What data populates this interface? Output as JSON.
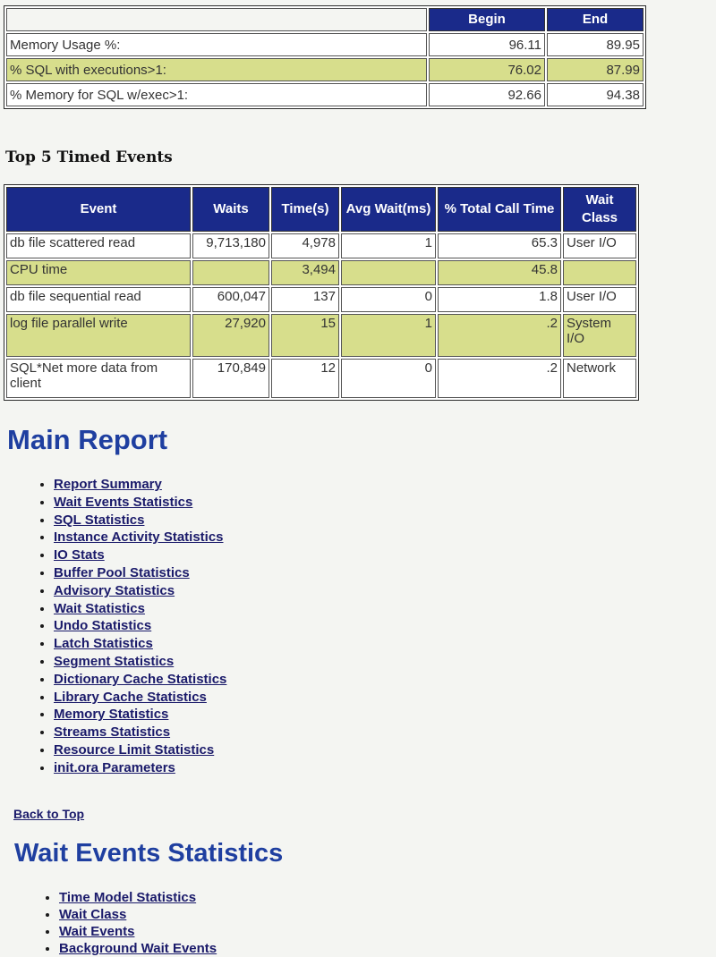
{
  "memory_table": {
    "headers": [
      "",
      "Begin",
      "End"
    ],
    "rows": [
      {
        "label": "Memory Usage %:",
        "begin": "96.11",
        "end": "89.95",
        "highlight": false
      },
      {
        "label": "% SQL with executions>1:",
        "begin": "76.02",
        "end": "87.99",
        "highlight": true
      },
      {
        "label": "% Memory for SQL w/exec>1:",
        "begin": "92.66",
        "end": "94.38",
        "highlight": false
      }
    ]
  },
  "top5": {
    "title": "Top 5 Timed Events",
    "headers": [
      "Event",
      "Waits",
      "Time(s)",
      "Avg Wait(ms)",
      "% Total Call Time",
      "Wait Class"
    ],
    "rows": [
      {
        "event": "db file scattered read",
        "waits": "9,713,180",
        "time": "4,978",
        "avg": "1",
        "pct": "65.3",
        "wclass": "User I/O"
      },
      {
        "event": "CPU time",
        "waits": "",
        "time": "3,494",
        "avg": "",
        "pct": "45.8",
        "wclass": ""
      },
      {
        "event": "db file sequential read",
        "waits": "600,047",
        "time": "137",
        "avg": "0",
        "pct": "1.8",
        "wclass": "User I/O"
      },
      {
        "event": "log file parallel write",
        "waits": "27,920",
        "time": "15",
        "avg": "1",
        "pct": ".2",
        "wclass": "System I/O"
      },
      {
        "event": "SQL*Net more data from client",
        "waits": "170,849",
        "time": "12",
        "avg": "0",
        "pct": ".2",
        "wclass": "Network"
      }
    ]
  },
  "main_report": {
    "title": "Main Report",
    "links": [
      "Report Summary",
      "Wait Events Statistics",
      "SQL Statistics",
      "Instance Activity Statistics",
      "IO Stats",
      "Buffer Pool Statistics",
      "Advisory Statistics",
      "Wait Statistics",
      "Undo Statistics",
      "Latch Statistics",
      "Segment Statistics",
      "Dictionary Cache Statistics",
      "Library Cache Statistics",
      "Memory Statistics",
      "Streams Statistics",
      "Resource Limit Statistics",
      "init.ora Parameters"
    ]
  },
  "back_to_top": "Back to Top",
  "wait_events": {
    "title": "Wait Events Statistics",
    "links": [
      "Time Model Statistics",
      "Wait Class",
      "Wait Events",
      "Background Wait Events"
    ]
  },
  "colors": {
    "header_bg": "#1a2a8a",
    "highlight_row": "#d7de8c",
    "heading_blue": "#1f3fa0",
    "link": "#1a1a6a"
  }
}
